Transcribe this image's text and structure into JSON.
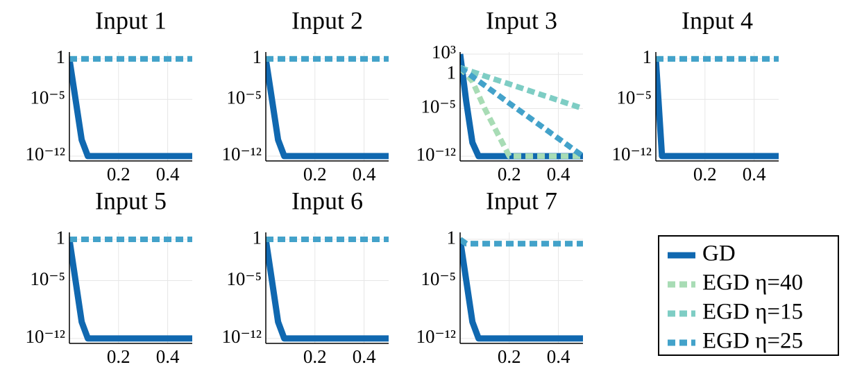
{
  "chart_data": [
    {
      "type": "line",
      "title": "Input 1",
      "log_y": true,
      "grid": true,
      "x": [
        0,
        0.025,
        0.05,
        0.075,
        0.1,
        0.2,
        0.3,
        0.4,
        0.5
      ],
      "xlim": [
        0,
        0.5
      ],
      "xticks": [
        0.2,
        0.4
      ],
      "ylim": [
        2.5e-13,
        7
      ],
      "yticks": [
        {
          "value": 1e-12,
          "label": "10⁻¹²"
        },
        {
          "value": 1e-05,
          "label": "10⁻⁵"
        },
        1
      ],
      "series": [
        {
          "name": "GD",
          "color": "#1068b0",
          "style": "solid",
          "values": [
            1,
            1e-05,
            1e-10,
            1e-12,
            1e-12,
            1e-12,
            1e-12,
            1e-12,
            1e-12
          ]
        },
        {
          "name": "EGD η=40",
          "color": "#a8dcb5",
          "style": "dashed",
          "values": [
            1,
            1,
            1,
            1,
            1,
            1,
            1,
            1,
            1
          ]
        },
        {
          "name": "EGD η=15",
          "color": "#7ecdc4",
          "style": "dashed",
          "values": [
            1,
            1,
            1,
            1,
            1,
            1,
            1,
            1,
            1
          ]
        },
        {
          "name": "EGD η=25",
          "color": "#43a2ca",
          "style": "dashed",
          "values": [
            1,
            1,
            1,
            1,
            1,
            1,
            1,
            1,
            1
          ]
        }
      ]
    },
    {
      "type": "line",
      "title": "Input 2",
      "log_y": true,
      "grid": true,
      "x": [
        0,
        0.025,
        0.05,
        0.075,
        0.1,
        0.2,
        0.3,
        0.4,
        0.5
      ],
      "xlim": [
        0,
        0.5
      ],
      "xticks": [
        0.2,
        0.4
      ],
      "ylim": [
        2.5e-13,
        7
      ],
      "yticks": [
        {
          "value": 1e-12,
          "label": "10⁻¹²"
        },
        {
          "value": 1e-05,
          "label": "10⁻⁵"
        },
        1
      ],
      "series": [
        {
          "name": "GD",
          "color": "#1068b0",
          "style": "solid",
          "values": [
            1,
            1e-05,
            1e-10,
            1e-12,
            1e-12,
            1e-12,
            1e-12,
            1e-12,
            1e-12
          ]
        },
        {
          "name": "EGD η=40",
          "color": "#a8dcb5",
          "style": "dashed",
          "values": [
            1,
            1,
            1,
            1,
            1,
            1,
            1,
            1,
            1
          ]
        },
        {
          "name": "EGD η=15",
          "color": "#7ecdc4",
          "style": "dashed",
          "values": [
            1,
            1,
            1,
            1,
            1,
            1,
            1,
            1,
            1
          ]
        },
        {
          "name": "EGD η=25",
          "color": "#43a2ca",
          "style": "dashed",
          "values": [
            1,
            1,
            1,
            1,
            1,
            1,
            1,
            1,
            1
          ]
        }
      ]
    },
    {
      "type": "line",
      "title": "Input 3",
      "log_y": true,
      "grid": true,
      "x": [
        0,
        0.025,
        0.05,
        0.075,
        0.1,
        0.2,
        0.3,
        0.4,
        0.5
      ],
      "xlim": [
        0,
        0.5
      ],
      "xticks": [
        0.2,
        0.4
      ],
      "ylim": [
        2e-13,
        2000
      ],
      "yticks": [
        {
          "value": 1e-12,
          "label": "10⁻¹²"
        },
        {
          "value": 1e-05,
          "label": "10⁻⁵"
        },
        1,
        {
          "value": 1000,
          "label": "10³"
        }
      ],
      "series": [
        {
          "name": "GD",
          "color": "#1068b0",
          "style": "solid",
          "values": [
            1000,
            0.0001,
            1e-10,
            1e-12,
            1e-12,
            1e-12,
            1e-12,
            1e-12,
            1e-12
          ]
        },
        {
          "name": "EGD η=40",
          "color": "#a8dcb5",
          "style": "dashed",
          "values": [
            10,
            1,
            0.1,
            0.001,
            1e-05,
            1e-12,
            1e-12,
            1e-12,
            1e-12
          ]
        },
        {
          "name": "EGD η=15",
          "color": "#7ecdc4",
          "style": "dashed",
          "values": [
            10,
            5,
            2.5,
            1.3,
            0.6,
            0.04,
            0.0025,
            0.00016,
            1e-05
          ]
        },
        {
          "name": "EGD η=25",
          "color": "#43a2ca",
          "style": "dashed",
          "values": [
            10,
            2.2,
            0.5,
            0.11,
            0.025,
            6e-05,
            1.6e-07,
            4e-10,
            1e-12
          ]
        }
      ]
    },
    {
      "type": "line",
      "title": "Input 4",
      "log_y": true,
      "grid": true,
      "x": [
        0,
        0.025,
        0.05,
        0.075,
        0.1,
        0.2,
        0.3,
        0.4,
        0.5
      ],
      "xlim": [
        0,
        0.5
      ],
      "xticks": [
        0.2,
        0.4
      ],
      "ylim": [
        2.5e-13,
        7
      ],
      "yticks": [
        {
          "value": 1e-12,
          "label": "10⁻¹²"
        },
        {
          "value": 1e-05,
          "label": "10⁻⁵"
        },
        1
      ],
      "series": [
        {
          "name": "GD",
          "color": "#1068b0",
          "style": "solid",
          "values": [
            1,
            1e-12,
            1e-12,
            1e-12,
            1e-12,
            1e-12,
            1e-12,
            1e-12,
            1e-12
          ]
        },
        {
          "name": "EGD η=40",
          "color": "#a8dcb5",
          "style": "dashed",
          "values": [
            1,
            1,
            1,
            1,
            1,
            1,
            1,
            1,
            1
          ]
        },
        {
          "name": "EGD η=15",
          "color": "#7ecdc4",
          "style": "dashed",
          "values": [
            1,
            1,
            1,
            1,
            1,
            1,
            1,
            1,
            1
          ]
        },
        {
          "name": "EGD η=25",
          "color": "#43a2ca",
          "style": "dashed",
          "values": [
            1,
            1,
            1,
            1,
            1,
            1,
            1,
            1,
            1
          ]
        }
      ]
    },
    {
      "type": "line",
      "title": "Input 5",
      "log_y": true,
      "grid": true,
      "x": [
        0,
        0.025,
        0.05,
        0.075,
        0.1,
        0.2,
        0.3,
        0.4,
        0.5
      ],
      "xlim": [
        0,
        0.5
      ],
      "xticks": [
        0.2,
        0.4
      ],
      "ylim": [
        2.5e-13,
        7
      ],
      "yticks": [
        {
          "value": 1e-12,
          "label": "10⁻¹²"
        },
        {
          "value": 1e-05,
          "label": "10⁻⁵"
        },
        1
      ],
      "series": [
        {
          "name": "GD",
          "color": "#1068b0",
          "style": "solid",
          "values": [
            1,
            1e-05,
            1e-10,
            1e-12,
            1e-12,
            1e-12,
            1e-12,
            1e-12,
            1e-12
          ]
        },
        {
          "name": "EGD η=40",
          "color": "#a8dcb5",
          "style": "dashed",
          "values": [
            1,
            1,
            1,
            1,
            1,
            1,
            1,
            1,
            1
          ]
        },
        {
          "name": "EGD η=15",
          "color": "#7ecdc4",
          "style": "dashed",
          "values": [
            1,
            1,
            1,
            1,
            1,
            1,
            1,
            1,
            1
          ]
        },
        {
          "name": "EGD η=25",
          "color": "#43a2ca",
          "style": "dashed",
          "values": [
            1,
            1,
            1,
            1,
            1,
            1,
            1,
            1,
            1
          ]
        }
      ]
    },
    {
      "type": "line",
      "title": "Input 6",
      "log_y": true,
      "grid": true,
      "x": [
        0,
        0.025,
        0.05,
        0.075,
        0.1,
        0.2,
        0.3,
        0.4,
        0.5
      ],
      "xlim": [
        0,
        0.5
      ],
      "xticks": [
        0.2,
        0.4
      ],
      "ylim": [
        2.5e-13,
        7
      ],
      "yticks": [
        {
          "value": 1e-12,
          "label": "10⁻¹²"
        },
        {
          "value": 1e-05,
          "label": "10⁻⁵"
        },
        1
      ],
      "series": [
        {
          "name": "GD",
          "color": "#1068b0",
          "style": "solid",
          "values": [
            1,
            1e-05,
            1e-10,
            1e-12,
            1e-12,
            1e-12,
            1e-12,
            1e-12,
            1e-12
          ]
        },
        {
          "name": "EGD η=40",
          "color": "#a8dcb5",
          "style": "dashed",
          "values": [
            1,
            1,
            1,
            1,
            1,
            1,
            1,
            1,
            1
          ]
        },
        {
          "name": "EGD η=15",
          "color": "#7ecdc4",
          "style": "dashed",
          "values": [
            1,
            1,
            1,
            1,
            1,
            1,
            1,
            1,
            1
          ]
        },
        {
          "name": "EGD η=25",
          "color": "#43a2ca",
          "style": "dashed",
          "values": [
            1,
            1,
            1,
            1,
            1,
            1,
            1,
            1,
            1
          ]
        }
      ]
    },
    {
      "type": "line",
      "title": "Input 7",
      "log_y": true,
      "grid": true,
      "x": [
        0,
        0.025,
        0.05,
        0.075,
        0.1,
        0.2,
        0.3,
        0.4,
        0.5
      ],
      "xlim": [
        0,
        0.5
      ],
      "xticks": [
        0.2,
        0.4
      ],
      "ylim": [
        2.5e-13,
        7
      ],
      "yticks": [
        {
          "value": 1e-12,
          "label": "10⁻¹²"
        },
        {
          "value": 1e-05,
          "label": "10⁻⁵"
        },
        1
      ],
      "series": [
        {
          "name": "GD",
          "color": "#1068b0",
          "style": "solid",
          "values": [
            1,
            1e-05,
            1e-10,
            1e-12,
            1e-12,
            1e-12,
            1e-12,
            1e-12,
            1e-12
          ]
        },
        {
          "name": "EGD η=40",
          "color": "#a8dcb5",
          "style": "dashed",
          "values": [
            1,
            0.3,
            0.3,
            0.3,
            0.3,
            0.3,
            0.3,
            0.3,
            0.3
          ]
        },
        {
          "name": "EGD η=15",
          "color": "#7ecdc4",
          "style": "dashed",
          "values": [
            1,
            0.3,
            0.3,
            0.3,
            0.3,
            0.3,
            0.3,
            0.3,
            0.3
          ]
        },
        {
          "name": "EGD η=25",
          "color": "#43a2ca",
          "style": "dashed",
          "values": [
            1,
            0.3,
            0.3,
            0.3,
            0.3,
            0.3,
            0.3,
            0.3,
            0.3
          ]
        }
      ]
    }
  ]
}
